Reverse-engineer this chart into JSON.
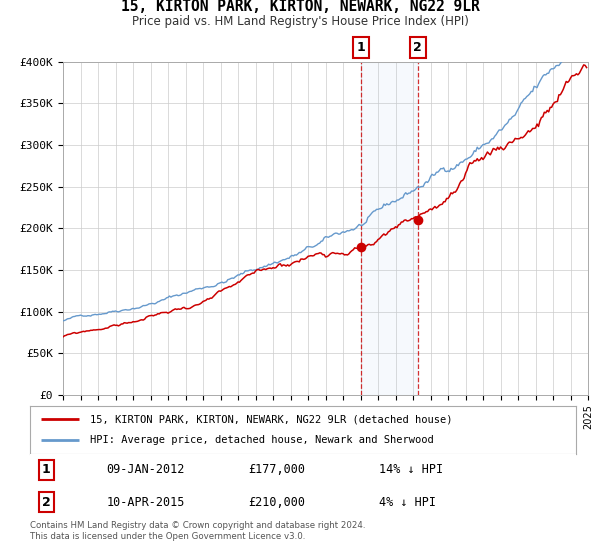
{
  "title": "15, KIRTON PARK, KIRTON, NEWARK, NG22 9LR",
  "subtitle": "Price paid vs. HM Land Registry's House Price Index (HPI)",
  "legend_line1": "15, KIRTON PARK, KIRTON, NEWARK, NG22 9LR (detached house)",
  "legend_line2": "HPI: Average price, detached house, Newark and Sherwood",
  "sale1_date": "09-JAN-2012",
  "sale1_price": 177000,
  "sale1_pct": "14% ↓ HPI",
  "sale2_date": "10-APR-2015",
  "sale2_price": 210000,
  "sale2_pct": "4% ↓ HPI",
  "footer": "Contains HM Land Registry data © Crown copyright and database right 2024.\nThis data is licensed under the Open Government Licence v3.0.",
  "price_color": "#cc0000",
  "hpi_color": "#6699cc",
  "vline1_x": 2012.03,
  "vline2_x": 2015.27,
  "dot1_y": 177000,
  "dot2_y": 210000,
  "ylim": [
    0,
    400000
  ],
  "xlim_start": 1995,
  "xlim_end": 2025
}
